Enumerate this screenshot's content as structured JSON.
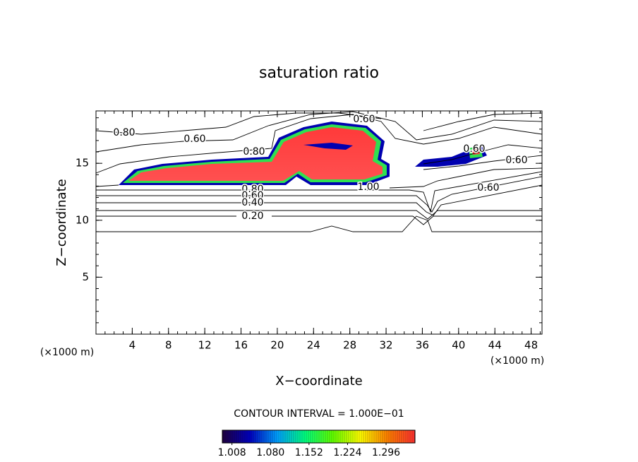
{
  "chart_data": {
    "type": "contour",
    "title": "saturation ratio",
    "x_label": "X−coordinate",
    "y_label": "Z−coordinate",
    "x_unit": "(×1000 m)",
    "y_unit": "(×1000 m)",
    "xlim": [
      0,
      49.2
    ],
    "ylim": [
      0,
      19.6
    ],
    "xticks": [
      4,
      8,
      12,
      16,
      20,
      24,
      28,
      32,
      36,
      40,
      44,
      48
    ],
    "yticks": [
      5,
      10,
      15
    ],
    "contour_interval": "CONTOUR INTERVAL = 1.000E−01",
    "contour_labels": [
      "0.80",
      "0.60",
      "0.60",
      "0.80",
      "1.00",
      "0.80",
      "0.60",
      "0.40",
      "0.20",
      "0.60",
      "0.60",
      "0.60"
    ],
    "colorbar": {
      "clim": [
        0.99,
        1.35
      ],
      "ticks": [
        {
          "value": 1.008,
          "label": "1.008"
        },
        {
          "value": 1.08,
          "label": "1.080"
        },
        {
          "value": 1.152,
          "label": "1.152"
        },
        {
          "value": 1.224,
          "label": "1.224"
        },
        {
          "value": 1.296,
          "label": "1.296"
        }
      ],
      "colors": [
        "#200040",
        "#0000c0",
        "#00a0ff",
        "#00ff80",
        "#60ff00",
        "#ffff00",
        "#ff8000",
        "#ff3030"
      ]
    }
  }
}
